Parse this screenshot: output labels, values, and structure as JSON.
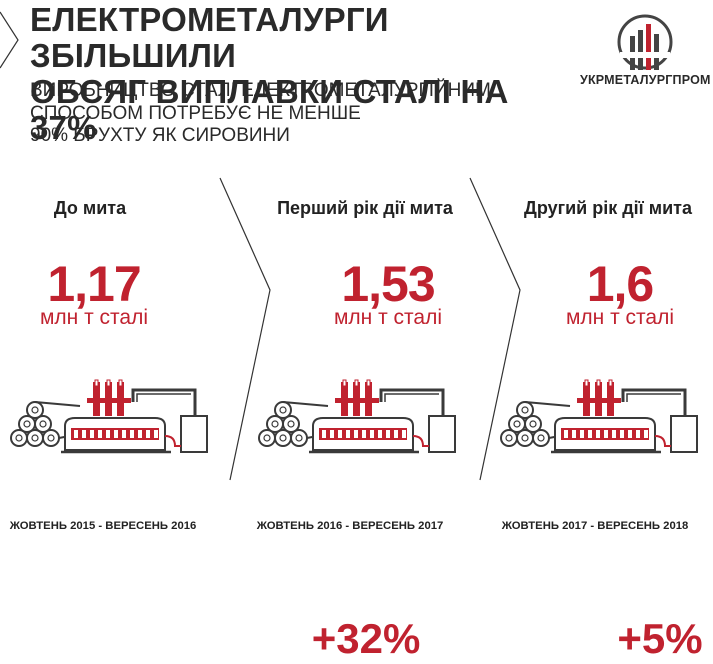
{
  "header": {
    "title_line1": "ЕЛЕКТРОМЕТАЛУРГИ ЗБІЛЬШИЛИ",
    "title_line2": "ОБСЯГ ВИПЛАВКИ СТАЛІ НА 37%",
    "subtitle_line1": "ВИРОБНИЦТВО СТАЛІ ЕЛЕКТРОМЕТАЛУРГІЙНИМ",
    "subtitle_line2": "СПОСОБОМ ПОТРЕБУЄ НЕ МЕНШЕ",
    "subtitle_line3": "90% БРУХТУ ЯК СИРОВИНИ",
    "logo_text": "УКРМЕТАЛУРГПРОМ"
  },
  "colors": {
    "accent": "#c0222f",
    "text": "#2a2a2a"
  },
  "icons": [
    "ukrmetalurgprom-logo",
    "electric-arc-furnace-icon"
  ],
  "chart_data": {
    "type": "table",
    "title": "ЕЛЕКТРОМЕТАЛУРГИ ЗБІЛЬШИЛИ ОБСЯГ ВИПЛАВКИ СТАЛІ НА 37%",
    "categories": [
      "До мита",
      "Перший рік дії мита",
      "Другий рік дії мита"
    ],
    "values": [
      1.17,
      1.53,
      1.6
    ],
    "value_labels": [
      "1,17",
      "1,53",
      "1,6"
    ],
    "unit": "млн т сталі",
    "periods": [
      "ЖОВТЕНЬ 2015 - ВЕРЕСЕНЬ 2016",
      "ЖОВТЕНЬ 2016 - ВЕРЕСЕНЬ 2017",
      "ЖОВТЕНЬ 2017 - ВЕРЕСЕНЬ 2018"
    ],
    "growth": [
      "+32%",
      "+5%"
    ]
  }
}
